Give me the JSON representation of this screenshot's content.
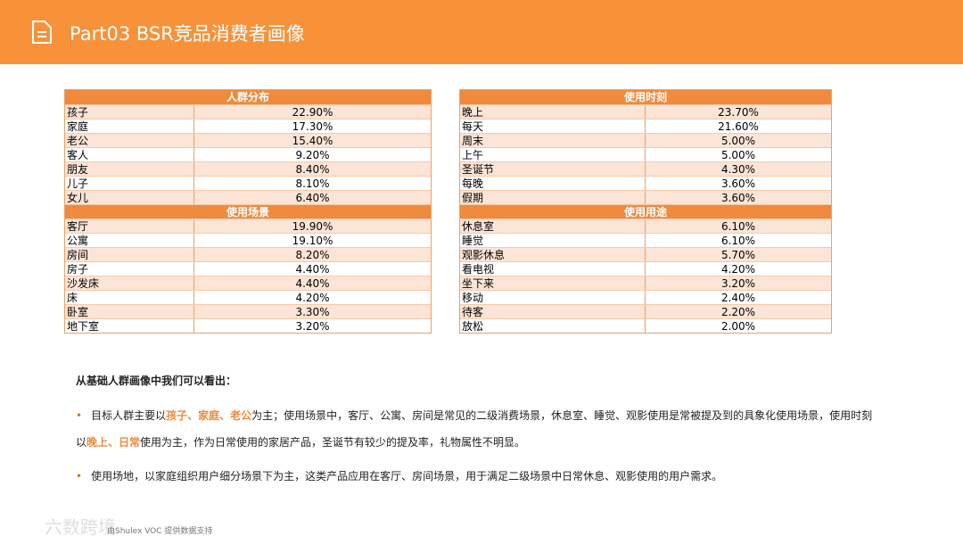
{
  "header": {
    "title": "Part03 BSR竞品消费者画像"
  },
  "tables": [
    {
      "sections": [
        {
          "title": "人群分布",
          "rows": [
            [
              "孩子",
              "22.90%"
            ],
            [
              "家庭",
              "17.30%"
            ],
            [
              "老公",
              "15.40%"
            ],
            [
              "客人",
              "9.20%"
            ],
            [
              "朋友",
              "8.40%"
            ],
            [
              "儿子",
              "8.10%"
            ],
            [
              "女儿",
              "6.40%"
            ]
          ]
        },
        {
          "title": "使用场景",
          "rows": [
            [
              "客厅",
              "19.90%"
            ],
            [
              "公寓",
              "19.10%"
            ],
            [
              "房间",
              "8.20%"
            ],
            [
              "房子",
              "4.40%"
            ],
            [
              "沙发床",
              "4.40%"
            ],
            [
              "床",
              "4.20%"
            ],
            [
              "卧室",
              "3.30%"
            ],
            [
              "地下室",
              "3.20%"
            ]
          ]
        }
      ]
    },
    {
      "sections": [
        {
          "title": "使用时刻",
          "rows": [
            [
              "晚上",
              "23.70%"
            ],
            [
              "每天",
              "21.60%"
            ],
            [
              "周末",
              "5.00%"
            ],
            [
              "上午",
              "5.00%"
            ],
            [
              "圣诞节",
              "4.30%"
            ],
            [
              "每晚",
              "3.60%"
            ],
            [
              "假期",
              "3.60%"
            ]
          ]
        },
        {
          "title": "使用用途",
          "rows": [
            [
              "休息室",
              "6.10%"
            ],
            [
              "睡觉",
              "6.10%"
            ],
            [
              "观影休息",
              "5.70%"
            ],
            [
              "看电视",
              "4.20%"
            ],
            [
              "坐下来",
              "3.20%"
            ],
            [
              "移动",
              "2.40%"
            ],
            [
              "待客",
              "2.20%"
            ],
            [
              "放松",
              "2.00%"
            ]
          ]
        }
      ]
    }
  ],
  "summary": {
    "heading": "从基础人群画像中我们可以看出：",
    "bullets": [
      {
        "segments": [
          {
            "text": "目标人群主要以",
            "highlight": false
          },
          {
            "text": "孩子、家庭、老公",
            "highlight": true
          },
          {
            "text": "为主；使用场景中，客厅、公寓、房间是常见的二级消费场景，休息室、睡觉、观影使用是常被提及到的具象化使用场景，使用时刻以",
            "highlight": false
          },
          {
            "text": "晚上、日常",
            "highlight": true
          },
          {
            "text": "使用为主，作为日常使用的家居产品，圣诞节有较少的提及率，礼物属性不明显。",
            "highlight": false
          }
        ]
      },
      {
        "segments": [
          {
            "text": "使用场地，以家庭组织用户细分场景下为主，这类产品应用在客厅、房间场景，用于满足二级场景中日常休息、观影使用的用户需求。",
            "highlight": false
          }
        ]
      }
    ]
  },
  "footer": {
    "source": "由Shulex VOC 提供数据支持",
    "watermark": "六数跨境"
  }
}
